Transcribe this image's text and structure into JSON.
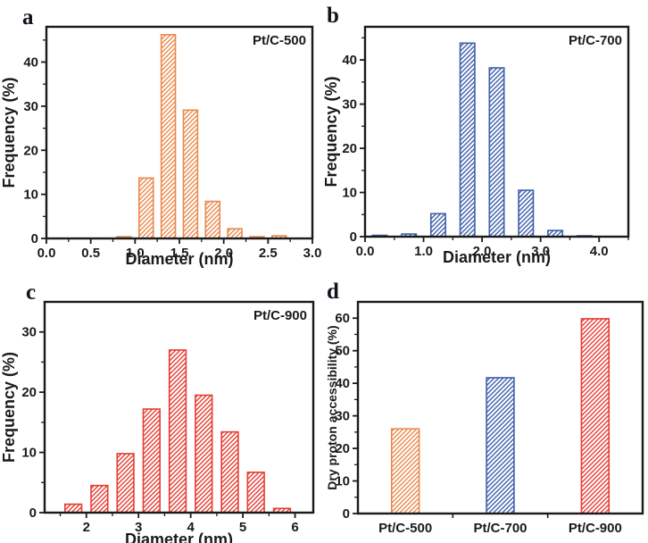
{
  "figure": {
    "background": "#ffffff",
    "axis_color": "#1a1a1a",
    "text_color": "#1a1a1a",
    "hatch_style": "diagonal-forward-slash",
    "accent_colors": {
      "orange": "#e98a4d",
      "blue": "#3e5faa",
      "red": "#e63c32"
    }
  },
  "panels": [
    {
      "label": "a"
    },
    {
      "label": "b"
    },
    {
      "label": "c"
    },
    {
      "label": "d"
    }
  ],
  "chart_data": [
    {
      "id": "a",
      "type": "bar",
      "title": "",
      "annotation": "Pt/C-500",
      "xlabel": "Diameter (nm)",
      "ylabel": "Frequency (%)",
      "bar_color": "#e98a4d",
      "x": [
        0.875,
        1.125,
        1.375,
        1.625,
        1.875,
        2.125,
        2.375,
        2.625
      ],
      "values": [
        0.4,
        13.7,
        46.2,
        29.1,
        8.4,
        2.2,
        0.4,
        0.6
      ],
      "bar_width": 0.16,
      "xlim": [
        0,
        3
      ],
      "ylim": [
        0,
        48
      ],
      "xticks": {
        "values": [
          0,
          0.5,
          1,
          1.5,
          2,
          2.5,
          3
        ],
        "labels": [
          "0.0",
          "0.5",
          "1.0",
          "1.5",
          "2.0",
          "2.5",
          "3.0"
        ],
        "minor": [
          0.25,
          0.75,
          1.25,
          1.75,
          2.25,
          2.75
        ]
      },
      "yticks": {
        "values": [
          0,
          10,
          20,
          30,
          40
        ],
        "labels": [
          "0",
          "10",
          "20",
          "30",
          "40"
        ],
        "minor": [
          5,
          15,
          25,
          35,
          45
        ]
      },
      "grid": false,
      "legend": "none"
    },
    {
      "id": "b",
      "type": "bar",
      "title": "",
      "annotation": "Pt/C-700",
      "xlabel": "Diameter (nm)",
      "ylabel": "Frequency (%)",
      "bar_color": "#3e5faa",
      "x": [
        0.25,
        0.75,
        1.25,
        1.75,
        2.25,
        2.75,
        3.25,
        3.75
      ],
      "values": [
        0.3,
        0.6,
        5.2,
        43.8,
        38.2,
        10.5,
        1.4,
        0.2
      ],
      "bar_width": 0.25,
      "xlim": [
        0,
        4.5
      ],
      "ylim": [
        0,
        47.5
      ],
      "xticks": {
        "values": [
          0,
          1,
          2,
          3,
          4
        ],
        "labels": [
          "0.0",
          "1.0",
          "2.0",
          "3.0",
          "4.0"
        ],
        "minor": [
          0.5,
          1.5,
          2.5,
          3.5,
          4.5
        ]
      },
      "yticks": {
        "values": [
          0,
          10,
          20,
          30,
          40
        ],
        "labels": [
          "0",
          "10",
          "20",
          "30",
          "40"
        ],
        "minor": [
          5,
          15,
          25,
          35,
          45
        ]
      },
      "grid": false,
      "legend": "none"
    },
    {
      "id": "c",
      "type": "bar",
      "title": "",
      "annotation": "Pt/C-900",
      "xlabel": "Diameter (nm)",
      "ylabel": "Frequency (%)",
      "bar_color": "#e63c32",
      "x": [
        1.75,
        2.25,
        2.75,
        3.25,
        3.75,
        4.25,
        4.75,
        5.25,
        5.75
      ],
      "values": [
        1.4,
        4.5,
        9.8,
        17.2,
        27.0,
        19.5,
        13.4,
        6.7,
        0.7
      ],
      "bar_width": 0.32,
      "xlim": [
        1.2,
        6.35
      ],
      "ylim": [
        0,
        35
      ],
      "xticks": {
        "values": [
          2,
          3,
          4,
          5,
          6
        ],
        "labels": [
          "2",
          "3",
          "4",
          "5",
          "6"
        ],
        "minor": [
          1.5,
          2.5,
          3.5,
          4.5,
          5.5
        ]
      },
      "yticks": {
        "values": [
          0,
          10,
          20,
          30
        ],
        "labels": [
          "0",
          "10",
          "20",
          "30"
        ],
        "minor": [
          5,
          15,
          25
        ]
      },
      "grid": false,
      "legend": "none"
    },
    {
      "id": "d",
      "type": "bar",
      "title": "",
      "annotation": "",
      "xlabel": "",
      "ylabel": "Dry proton accessibility (%)",
      "categories": [
        "Pt/C-500",
        "Pt/C-700",
        "Pt/C-900"
      ],
      "values": [
        26.0,
        41.7,
        59.8
      ],
      "bar_colors": [
        "#e98a4d",
        "#3e5faa",
        "#e63c32"
      ],
      "bar_fraction": 0.29,
      "ylim": [
        0,
        65
      ],
      "category_boundary_ticks": [
        1,
        2
      ],
      "yticks": {
        "values": [
          0,
          10,
          20,
          30,
          40,
          50,
          60
        ],
        "labels": [
          "0",
          "10",
          "20",
          "30",
          "40",
          "50",
          "60"
        ],
        "minor": [
          5,
          15,
          25,
          35,
          45,
          55
        ]
      },
      "grid": false,
      "legend": "none"
    }
  ]
}
